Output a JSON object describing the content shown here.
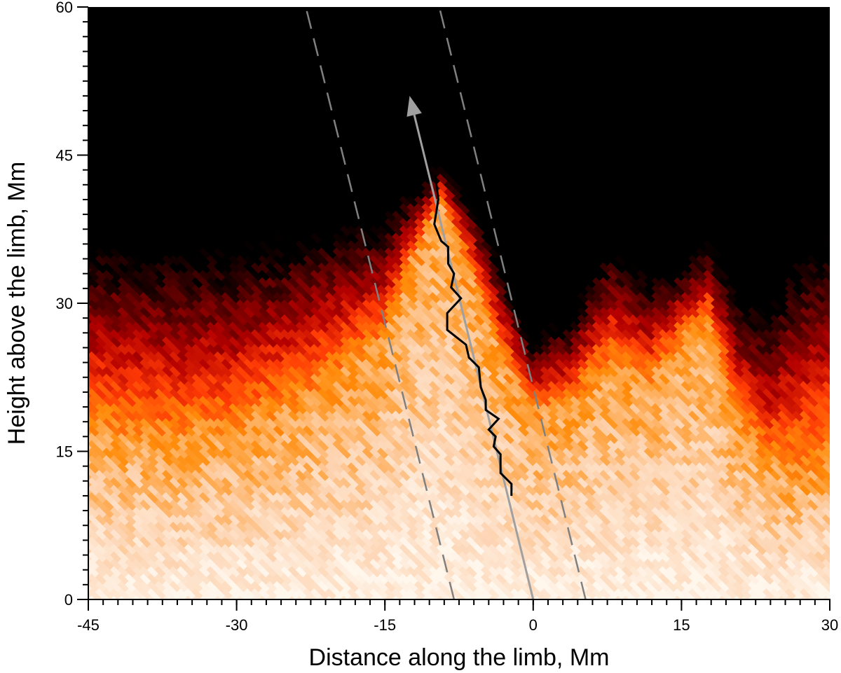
{
  "chart_data": {
    "type": "heatmap",
    "title": "",
    "xlabel": "Distance along the limb, Mm",
    "ylabel": "Height above the limb, Mm",
    "xlim": [
      -45,
      30
    ],
    "ylim": [
      0,
      60
    ],
    "x_ticks": [
      "-45",
      "-30",
      "-15",
      "0",
      "15",
      "30"
    ],
    "y_ticks": [
      "0",
      "15",
      "30",
      "45",
      "60"
    ],
    "x_tick_values": [
      -45,
      -30,
      -15,
      0,
      15,
      30
    ],
    "y_tick_values": [
      0,
      15,
      30,
      45,
      60
    ],
    "x_minor_step": 1.5,
    "y_minor_step": 1.5,
    "colormap": [
      "#fff6ec",
      "#fdd3b0",
      "#ff8c0a",
      "#ff3a05",
      "#b40000",
      "#5a0000",
      "#000000"
    ],
    "intensity_ridge": {
      "x": [
        -45,
        -38,
        -30,
        -22,
        -15,
        -11,
        -9,
        -6,
        -3,
        0,
        4,
        8,
        12,
        15,
        18,
        21,
        24,
        27,
        30
      ],
      "peak_height": [
        17,
        16,
        17,
        21,
        26,
        37,
        40,
        33,
        25,
        19,
        20,
        24,
        22,
        26,
        28,
        18,
        14,
        13,
        14
      ],
      "falloff_height": [
        35,
        34,
        34,
        36,
        38,
        42,
        44,
        40,
        33,
        26,
        28,
        35,
        32,
        33,
        36,
        30,
        28,
        33,
        35
      ]
    },
    "lines": [
      {
        "style": "arrow",
        "color": "#a0a0a0",
        "x": [
          0,
          -12.5
        ],
        "y": [
          0,
          51
        ]
      },
      {
        "style": "dashed",
        "color": "#808080",
        "x": [
          -8,
          -23
        ],
        "y": [
          0,
          60
        ]
      },
      {
        "style": "dashed",
        "color": "#808080",
        "x": [
          5.3,
          -9.5
        ],
        "y": [
          0,
          60
        ]
      },
      {
        "style": "solid",
        "color": "#000000",
        "x": [
          -2.2,
          -2.2,
          -3.3,
          -3.3,
          -4.0,
          -3.8,
          -4.5,
          -3.5,
          -4.8,
          -4.8,
          -5.3,
          -5.5,
          -6.5,
          -6.8,
          -8.7,
          -8.7,
          -7.3,
          -8.3,
          -8.0,
          -8.6,
          -8.6,
          -9.3,
          -10.0,
          -9.6,
          -9.9
        ],
        "y": [
          10.5,
          11.7,
          12.8,
          14.7,
          15.5,
          16.5,
          17.2,
          18.3,
          19.2,
          20.2,
          21.5,
          23.5,
          24.5,
          25.8,
          27.3,
          29.0,
          30.5,
          31.6,
          33.0,
          34.0,
          35.7,
          36.3,
          38.0,
          40.5,
          43.0
        ]
      }
    ],
    "grid": false,
    "legend": "none"
  }
}
